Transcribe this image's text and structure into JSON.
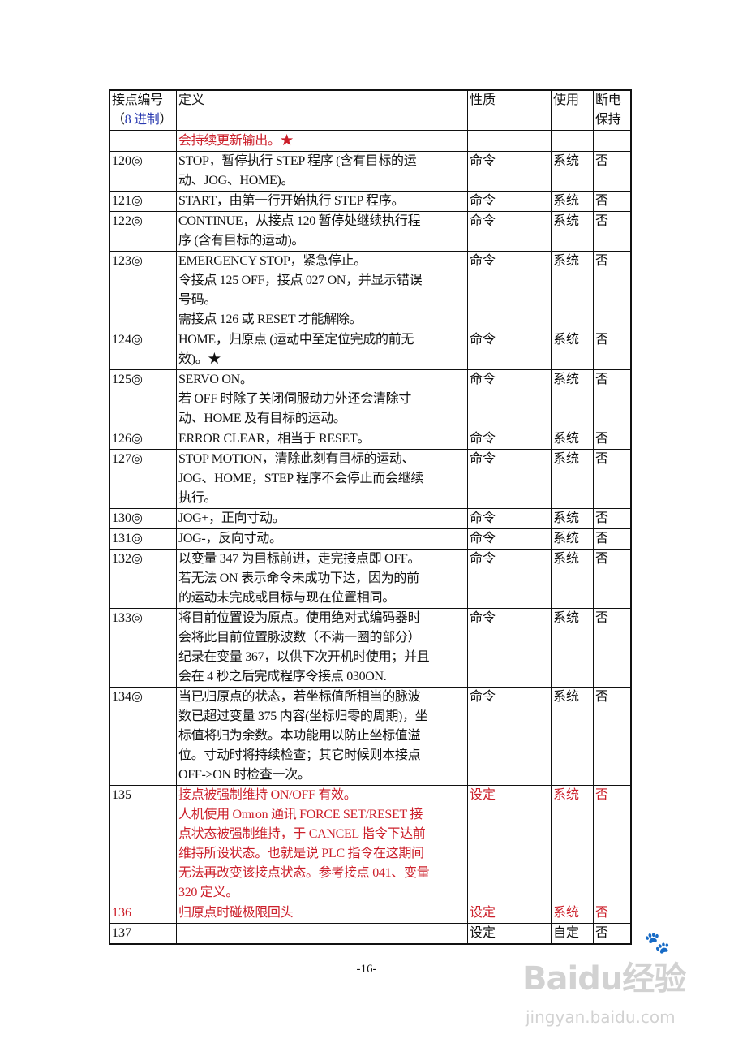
{
  "header": {
    "col_id_line1": "接点编号",
    "col_id_line2_open": "（",
    "col_id_line2_main": "8 进制",
    "col_id_line2_close": "）",
    "col_def": "定义",
    "col_type": "性质",
    "col_use": "使用",
    "col_retain_line1": "断电",
    "col_retain_line2": "保持"
  },
  "colors": {
    "red": "#cc1f2a",
    "blue": "#2a3ab0"
  },
  "rows": [
    {
      "id": "",
      "lines": [
        "会持续更新输出。★"
      ],
      "type": "",
      "use": "",
      "retain": "",
      "red_def": true
    },
    {
      "id": "120◎",
      "lines": [
        "STOP，暂停执行 STEP 程序 (含有目标的运",
        "动、JOG、HOME)。"
      ],
      "type": "命令",
      "use": "系统",
      "retain": "否"
    },
    {
      "id": "121◎",
      "lines": [
        "START，由第一行开始执行 STEP 程序。"
      ],
      "type": "命令",
      "use": "系统",
      "retain": "否"
    },
    {
      "id": "122◎",
      "lines": [
        "CONTINUE，从接点 120 暂停处继续执行程",
        "序 (含有目标的运动)。"
      ],
      "type": "命令",
      "use": "系统",
      "retain": "否"
    },
    {
      "id": "123◎",
      "lines": [
        "EMERGENCY STOP，紧急停止。",
        "令接点 125 OFF，接点 027 ON，并显示错误",
        "号码。",
        "需接点 126 或 RESET 才能解除。"
      ],
      "type": "命令",
      "use": "系统",
      "retain": "否"
    },
    {
      "id": "124◎",
      "lines": [
        "HOME，归原点 (运动中至定位完成的前无",
        "效)。★"
      ],
      "type": "命令",
      "use": "系统",
      "retain": "否"
    },
    {
      "id": "125◎",
      "lines": [
        "SERVO ON。",
        "若 OFF 时除了关闭伺服动力外还会清除寸",
        "动、HOME 及有目标的运动。"
      ],
      "type": "命令",
      "use": "系统",
      "retain": "否"
    },
    {
      "id": "126◎",
      "lines": [
        "ERROR CLEAR，相当于 RESET。"
      ],
      "type": "命令",
      "use": "系统",
      "retain": "否"
    },
    {
      "id": "127◎",
      "lines": [
        "STOP MOTION，清除此刻有目标的运动、",
        "JOG、HOME，STEP 程序不会停止而会继续",
        "执行。"
      ],
      "type": "命令",
      "use": "系统",
      "retain": "否"
    },
    {
      "id": "130◎",
      "lines": [
        "JOG+，正向寸动。"
      ],
      "type": "命令",
      "use": "系统",
      "retain": "否"
    },
    {
      "id": "131◎",
      "lines": [
        "JOG-，反向寸动。"
      ],
      "type": "命令",
      "use": "系统",
      "retain": "否"
    },
    {
      "id": "132◎",
      "lines": [
        "以变量 347 为目标前进，走完接点即 OFF。",
        "若无法 ON 表示命令未成功下达，因为的前",
        "的运动未完成或目标与现在位置相同。"
      ],
      "type": "命令",
      "use": "系统",
      "retain": "否"
    },
    {
      "id": "133◎",
      "lines": [
        "将目前位置设为原点。使用绝对式编码器时",
        "会将此目前位置脉波数（不满一圈的部分）",
        "纪录在变量 367，以供下次开机时使用；并且",
        "会在 4 秒之后完成程序令接点 030ON."
      ],
      "type": "命令",
      "use": "系统",
      "retain": "否"
    },
    {
      "id": "134◎",
      "lines": [
        "当已归原点的状态，若坐标值所相当的脉波",
        "数已超过变量 375 内容(坐标归零的周期)，坐",
        "标值将归为余数。本功能用以防止坐标值溢",
        "位。寸动时将持续检查；其它时候则本接点",
        "OFF->ON 时检查一次。"
      ],
      "type": "命令",
      "use": "系统",
      "retain": "否"
    },
    {
      "id": "135",
      "lines": [
        "接点被强制维持 ON/OFF 有效。",
        "人机使用 Omron 通讯 FORCE SET/RESET 接",
        "点状态被强制维持，于 CANCEL 指令下达前",
        "维持所设状态。也就是说 PLC 指令在这期间",
        "无法再改变该接点状态。参考接点 041、变量",
        "320 定义。"
      ],
      "type": "设定",
      "use": "系统",
      "retain": "否",
      "red_def": true,
      "red_type": true,
      "red_use": true,
      "red_retain": true
    },
    {
      "id": "136",
      "lines": [
        "归原点时碰极限回头"
      ],
      "type": "设定",
      "use": "系统",
      "retain": "否",
      "red_id": true,
      "red_def": true,
      "red_type": true,
      "red_use": true,
      "red_retain": true
    },
    {
      "id": "137",
      "lines": [],
      "type": "设定",
      "use": "自定",
      "retain": "否"
    }
  ],
  "footer": {
    "page_number": "-16-"
  },
  "watermark": {
    "text": "Baidu经验",
    "url_text": "jingyan.baidu.com"
  }
}
